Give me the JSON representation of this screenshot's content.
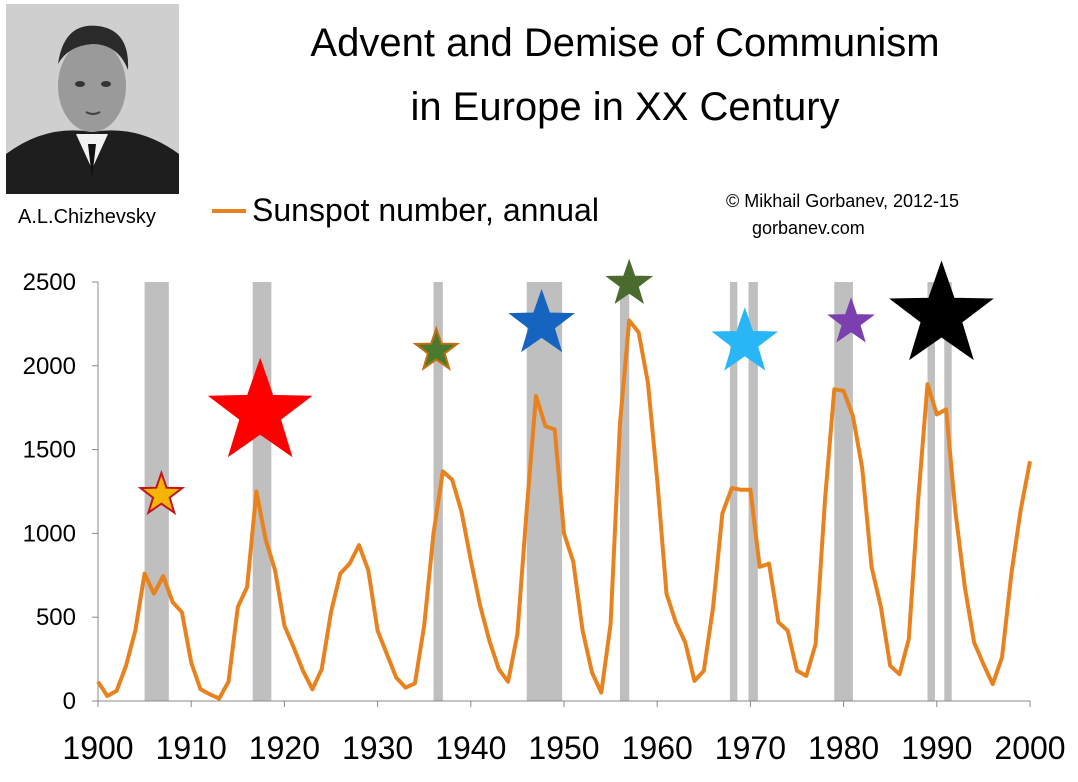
{
  "portrait": {
    "caption": "A.L.Chizhevsky"
  },
  "copyright": "© Mikhail Gorbanev, 2012-15",
  "website": "gorbanev.com",
  "chart_data": {
    "type": "line",
    "title": [
      "Advent and Demise of Communism",
      "in Europe in XX Century"
    ],
    "legend_position": "top-left",
    "xlim": [
      1900,
      2000
    ],
    "ylim": [
      0,
      2500
    ],
    "x_ticks": [
      1900,
      1910,
      1920,
      1930,
      1940,
      1950,
      1960,
      1970,
      1980,
      1990,
      2000
    ],
    "y_ticks": [
      0,
      500,
      1000,
      1500,
      2000,
      2500
    ],
    "grid": false,
    "series": [
      {
        "name": "Sunspot number, annual",
        "color": "#e8821e",
        "x": [
          1900,
          1901,
          1902,
          1903,
          1904,
          1905,
          1906,
          1907,
          1908,
          1909,
          1910,
          1911,
          1912,
          1913,
          1914,
          1915,
          1916,
          1917,
          1918,
          1919,
          1920,
          1921,
          1922,
          1923,
          1924,
          1925,
          1926,
          1927,
          1928,
          1929,
          1930,
          1931,
          1932,
          1933,
          1934,
          1935,
          1936,
          1937,
          1938,
          1939,
          1940,
          1941,
          1942,
          1943,
          1944,
          1945,
          1946,
          1947,
          1948,
          1949,
          1950,
          1951,
          1952,
          1953,
          1954,
          1955,
          1956,
          1957,
          1958,
          1959,
          1960,
          1961,
          1962,
          1963,
          1964,
          1965,
          1966,
          1967,
          1968,
          1969,
          1970,
          1971,
          1972,
          1973,
          1974,
          1975,
          1976,
          1977,
          1978,
          1979,
          1980,
          1981,
          1982,
          1983,
          1984,
          1985,
          1986,
          1987,
          1988,
          1989,
          1990,
          1991,
          1992,
          1993,
          1994,
          1995,
          1996,
          1997,
          1998,
          1999,
          2000
        ],
        "values": [
          115,
          30,
          60,
          210,
          420,
          760,
          640,
          745,
          590,
          530,
          230,
          70,
          40,
          15,
          115,
          560,
          680,
          1250,
          960,
          780,
          450,
          320,
          180,
          70,
          190,
          530,
          760,
          820,
          930,
          780,
          420,
          280,
          140,
          80,
          105,
          450,
          1000,
          1370,
          1320,
          1130,
          840,
          570,
          360,
          190,
          115,
          400,
          1140,
          1820,
          1640,
          1620,
          1000,
          830,
          420,
          170,
          50,
          460,
          1650,
          2270,
          2200,
          1900,
          1320,
          640,
          470,
          350,
          120,
          180,
          560,
          1120,
          1270,
          1260,
          1260,
          800,
          820,
          470,
          420,
          180,
          150,
          340,
          1200,
          1860,
          1850,
          1700,
          1390,
          800,
          560,
          210,
          160,
          370,
          1200,
          1890,
          1710,
          1740,
          1130,
          680,
          350,
          220,
          100,
          260,
          760,
          1140,
          1430
        ]
      }
    ],
    "shaded_periods": [
      [
        1905,
        1907.6
      ],
      [
        1916.6,
        1918.6
      ],
      [
        1936,
        1937
      ],
      [
        1946,
        1949.8
      ],
      [
        1956,
        1957
      ],
      [
        1967.8,
        1968.6
      ],
      [
        1969.8,
        1970.8
      ],
      [
        1979,
        1981
      ],
      [
        1989,
        1989.8
      ],
      [
        1990.8,
        1991.6
      ]
    ],
    "stars": [
      {
        "year": 1906.8,
        "level": 1230,
        "size": "small",
        "color": "#f4b400",
        "outline": "#c0151e"
      },
      {
        "year": 1917.4,
        "level": 1720,
        "size": "large",
        "color": "#ff0000",
        "outline": "#ff0000"
      },
      {
        "year": 1936.3,
        "level": 2090,
        "size": "small",
        "color": "#4a7a2e",
        "outline": "#c07010"
      },
      {
        "year": 1947.6,
        "level": 2250,
        "size": "medium",
        "color": "#1565c0",
        "outline": "#1565c0"
      },
      {
        "year": 1957,
        "level": 2490,
        "size": "small",
        "color": "#4a6a2e",
        "outline": "#4a6a2e"
      },
      {
        "year": 1969.4,
        "level": 2140,
        "size": "medium",
        "color": "#29b6f6",
        "outline": "#29b6f6"
      },
      {
        "year": 1980.8,
        "level": 2260,
        "size": "small",
        "color": "#7b3fb0",
        "outline": "#7b3fb0"
      },
      {
        "year": 1990.5,
        "level": 2300,
        "size": "large",
        "color": "#000000",
        "outline": "#000000"
      }
    ]
  }
}
